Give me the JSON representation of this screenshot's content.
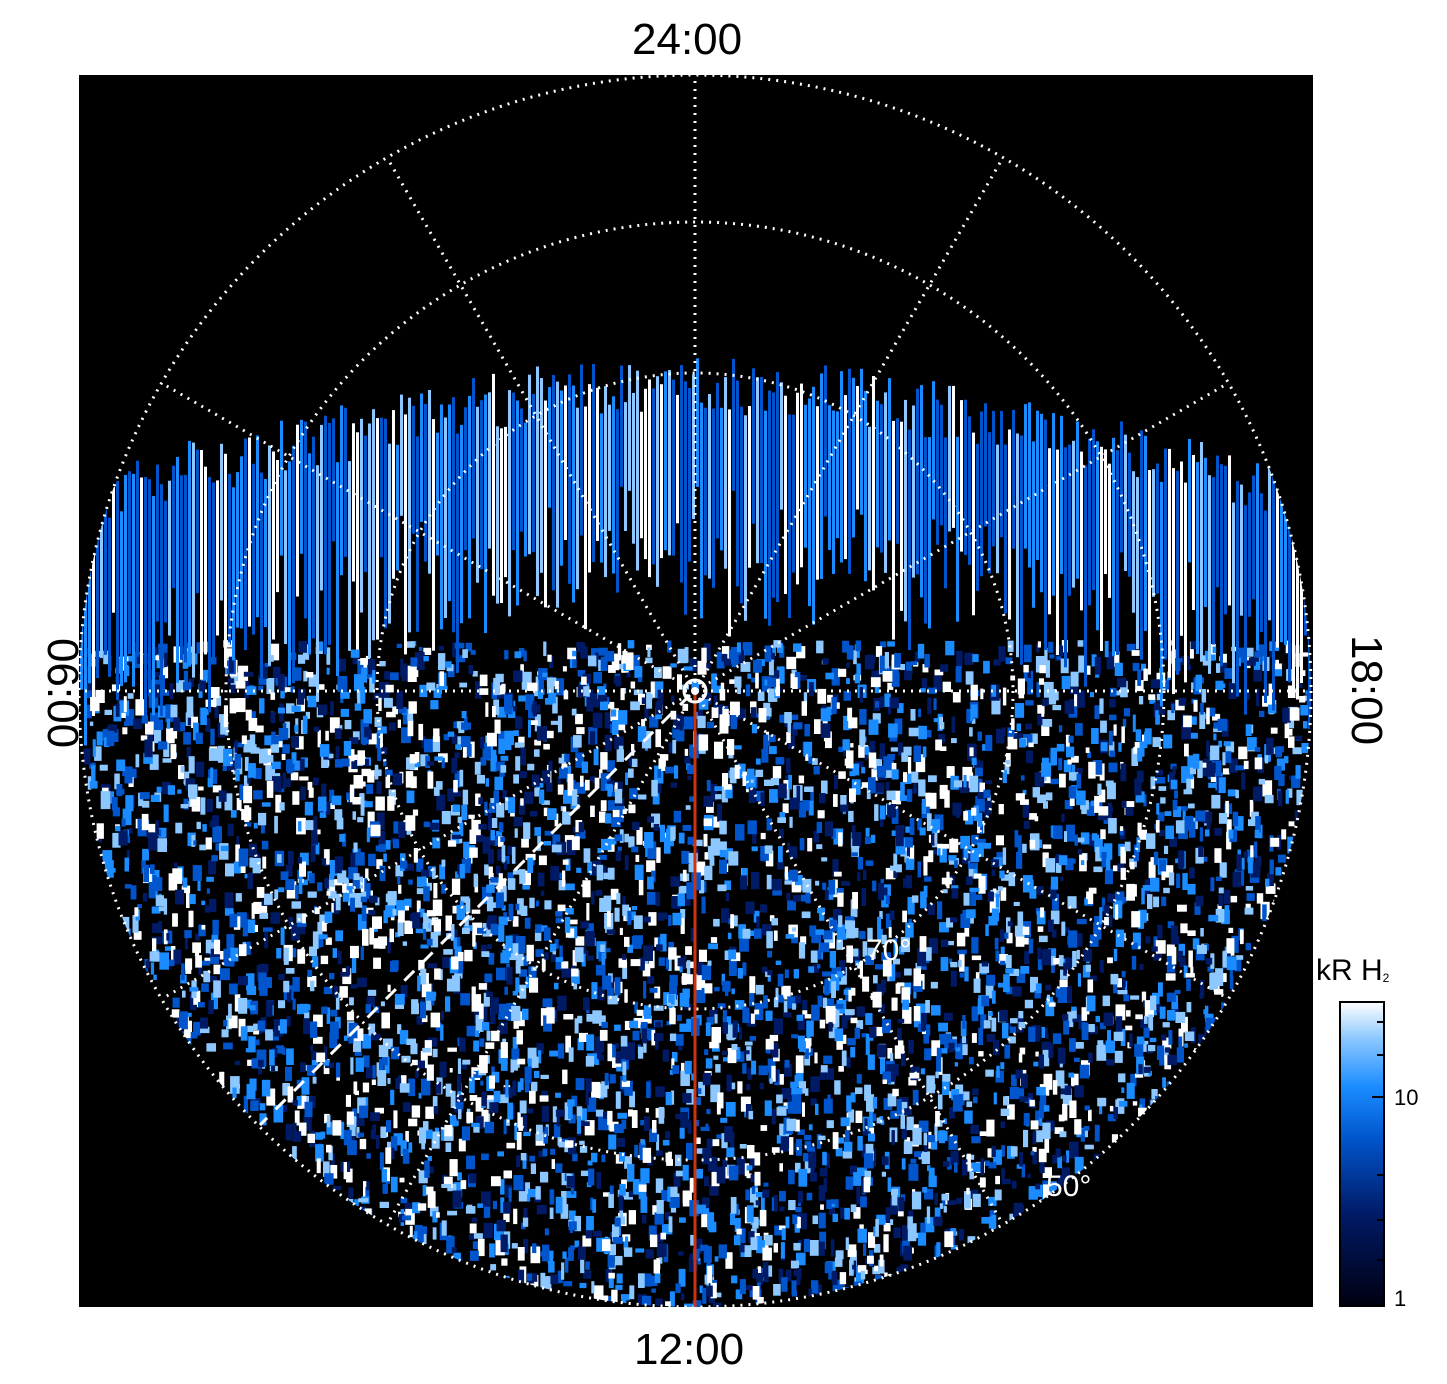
{
  "figure": {
    "type": "polar auroral projection",
    "background_color": "#000000",
    "grid_color": "#ffffff",
    "meridian_color": "#cc3311",
    "local_time_labels": {
      "top": "24:00",
      "bottom": "12:00",
      "left": "06:00",
      "right": "18:00"
    },
    "latitude_labels": [
      "70°",
      "50°"
    ]
  },
  "colorbar": {
    "title": "kR H",
    "title_subscript": "2",
    "scale": "log",
    "range": [
      1,
      30
    ],
    "ticks": [
      "10",
      "1"
    ],
    "colors": [
      "#000010",
      "#001a66",
      "#0055cc",
      "#1a8cff",
      "#8cc8ff",
      "#ffffff"
    ]
  }
}
